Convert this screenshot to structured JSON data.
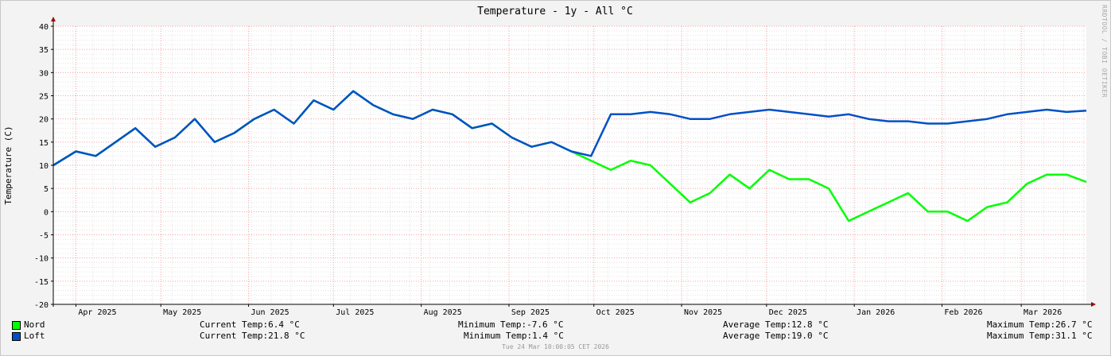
{
  "chart_data": {
    "type": "line",
    "title": "Temperature - 1y - All °C",
    "ylabel": "Temperature (C)",
    "xlabel": "",
    "ylim": [
      -20,
      40
    ],
    "y_ticks": [
      40,
      35,
      30,
      25,
      20,
      15,
      10,
      5,
      0,
      -5,
      -10,
      -15,
      -20
    ],
    "x_range": [
      "2025-03-24",
      "2026-03-24"
    ],
    "x_ticks": [
      {
        "label": "Apr 2025",
        "date": "2025-04-01"
      },
      {
        "label": "May 2025",
        "date": "2025-05-01"
      },
      {
        "label": "Jun 2025",
        "date": "2025-06-01"
      },
      {
        "label": "Jul 2025",
        "date": "2025-07-01"
      },
      {
        "label": "Aug 2025",
        "date": "2025-08-01"
      },
      {
        "label": "Sep 2025",
        "date": "2025-09-01"
      },
      {
        "label": "Oct 2025",
        "date": "2025-10-01"
      },
      {
        "label": "Nov 2025",
        "date": "2025-11-01"
      },
      {
        "label": "Dec 2025",
        "date": "2025-12-01"
      },
      {
        "label": "Jan 2026",
        "date": "2026-01-01"
      },
      {
        "label": "Feb 2026",
        "date": "2026-02-01"
      },
      {
        "label": "Mar 2026",
        "date": "2026-03-01"
      }
    ],
    "grid": true,
    "legend_placement": "bottom-left",
    "series": [
      {
        "name": "Nord",
        "color": "#00ff00",
        "x": [
          "2025-03-24",
          "2025-04-01",
          "2025-04-08",
          "2025-04-15",
          "2025-04-22",
          "2025-04-29",
          "2025-05-06",
          "2025-05-13",
          "2025-05-20",
          "2025-05-27",
          "2025-06-03",
          "2025-06-10",
          "2025-06-17",
          "2025-06-24",
          "2025-07-01",
          "2025-07-08",
          "2025-07-15",
          "2025-07-22",
          "2025-07-29",
          "2025-08-05",
          "2025-08-12",
          "2025-08-19",
          "2025-08-26",
          "2025-09-02",
          "2025-09-09",
          "2025-09-16",
          "2025-09-23",
          "2025-09-30",
          "2025-10-07",
          "2025-10-14",
          "2025-10-21",
          "2025-10-28",
          "2025-11-04",
          "2025-11-11",
          "2025-11-18",
          "2025-11-25",
          "2025-12-02",
          "2025-12-09",
          "2025-12-16",
          "2025-12-23",
          "2025-12-30",
          "2026-01-06",
          "2026-01-13",
          "2026-01-20",
          "2026-01-27",
          "2026-02-03",
          "2026-02-10",
          "2026-02-17",
          "2026-02-24",
          "2026-03-03",
          "2026-03-10",
          "2026-03-17",
          "2026-03-24"
        ],
        "values": [
          10,
          13,
          12,
          15,
          18,
          14,
          16,
          20,
          15,
          17,
          20,
          22,
          19,
          24,
          22,
          26,
          23,
          21,
          20,
          22,
          21,
          18,
          19,
          16,
          14,
          15,
          13,
          11,
          9,
          11,
          10,
          6,
          2,
          4,
          8,
          5,
          9,
          7,
          7,
          5,
          -2,
          0,
          2,
          4,
          0,
          0,
          -2,
          1,
          2,
          6,
          8,
          8,
          6.4
        ]
      },
      {
        "name": "Loft",
        "color": "#0050c8",
        "x": [
          "2025-03-24",
          "2025-04-01",
          "2025-04-08",
          "2025-04-15",
          "2025-04-22",
          "2025-04-29",
          "2025-05-06",
          "2025-05-13",
          "2025-05-20",
          "2025-05-27",
          "2025-06-03",
          "2025-06-10",
          "2025-06-17",
          "2025-06-24",
          "2025-07-01",
          "2025-07-08",
          "2025-07-15",
          "2025-07-22",
          "2025-07-29",
          "2025-08-05",
          "2025-08-12",
          "2025-08-19",
          "2025-08-26",
          "2025-09-02",
          "2025-09-09",
          "2025-09-16",
          "2025-09-23",
          "2025-09-30",
          "2025-10-07",
          "2025-10-14",
          "2025-10-21",
          "2025-10-28",
          "2025-11-04",
          "2025-11-11",
          "2025-11-18",
          "2025-11-25",
          "2025-12-02",
          "2025-12-09",
          "2025-12-16",
          "2025-12-23",
          "2025-12-30",
          "2026-01-06",
          "2026-01-13",
          "2026-01-20",
          "2026-01-27",
          "2026-02-03",
          "2026-02-10",
          "2026-02-17",
          "2026-02-24",
          "2026-03-03",
          "2026-03-10",
          "2026-03-17",
          "2026-03-24"
        ],
        "values": [
          10,
          13,
          12,
          15,
          18,
          14,
          16,
          20,
          15,
          17,
          20,
          22,
          19,
          24,
          22,
          26,
          23,
          21,
          20,
          22,
          21,
          18,
          19,
          16,
          14,
          15,
          13,
          12,
          21,
          21,
          21.5,
          21,
          20,
          20,
          21,
          21.5,
          22,
          21.5,
          21,
          20.5,
          21,
          20,
          19.5,
          19.5,
          19,
          19,
          19.5,
          20,
          21,
          21.5,
          22,
          21.5,
          21.8
        ]
      }
    ]
  },
  "legend": [
    {
      "name": "Nord",
      "color": "#00ff00",
      "current": "Current Temp:6.4 °C",
      "minimum": "Minimum Temp:-7.6 °C",
      "average": "Average Temp:12.8 °C",
      "maximum": "Maximum Temp:26.7 °C"
    },
    {
      "name": "Loft",
      "color": "#0050c8",
      "current": "Current Temp:21.8 °C",
      "minimum": "Minimum Temp:1.4 °C",
      "average": "Average Temp:19.0 °C",
      "maximum": "Maximum Temp:31.1 °C"
    }
  ],
  "footer": "Tue 24 Mar 10:00:05 CET 2026",
  "watermark": "RRDTOOL / TOBI OETIKER"
}
